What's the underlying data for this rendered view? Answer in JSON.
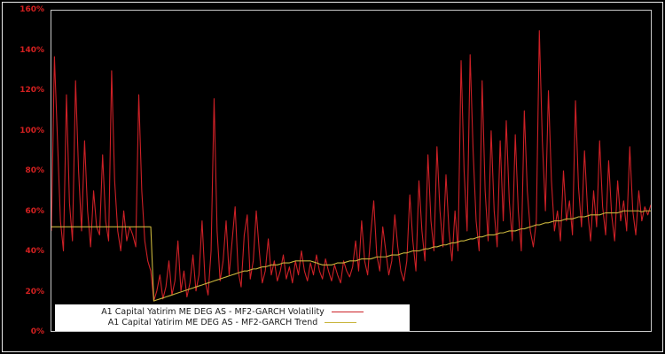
{
  "chart_data": {
    "type": "line",
    "title": "",
    "xlabel": "",
    "ylabel": "",
    "ylim": [
      0,
      160
    ],
    "y_ticks": [
      0,
      20,
      40,
      60,
      80,
      100,
      120,
      140,
      160
    ],
    "y_tick_suffix": "%",
    "grid": false,
    "background_color": "#000000",
    "axis_label_color": "#d42020",
    "frame_color": "#c9c9c9",
    "legend_position": "bottom-left-inside",
    "series": [
      {
        "name": "A1 Capital Yatirim ME DEG AS - MF2-GARCH Volatility",
        "color": "#cd2026",
        "values": [
          50,
          137,
          96,
          55,
          40,
          118,
          64,
          45,
          125,
          80,
          50,
          95,
          60,
          42,
          70,
          52,
          48,
          88,
          55,
          45,
          130,
          75,
          50,
          40,
          60,
          45,
          52,
          48,
          42,
          118,
          70,
          45,
          35,
          30,
          15,
          20,
          28,
          16,
          22,
          35,
          18,
          25,
          45,
          20,
          30,
          17,
          24,
          38,
          20,
          28,
          55,
          25,
          18,
          40,
          116,
          50,
          25,
          35,
          55,
          28,
          45,
          62,
          30,
          22,
          48,
          58,
          26,
          35,
          60,
          40,
          24,
          30,
          46,
          28,
          35,
          25,
          30,
          38,
          26,
          32,
          24,
          35,
          28,
          40,
          30,
          25,
          34,
          28,
          38,
          30,
          26,
          36,
          30,
          25,
          33,
          28,
          24,
          35,
          30,
          27,
          32,
          45,
          30,
          55,
          35,
          28,
          48,
          65,
          38,
          30,
          52,
          40,
          28,
          35,
          58,
          42,
          30,
          25,
          35,
          68,
          45,
          30,
          75,
          50,
          35,
          88,
          55,
          40,
          92,
          60,
          42,
          78,
          50,
          35,
          60,
          40,
          135,
          80,
          50,
          138,
          90,
          55,
          40,
          125,
          70,
          45,
          100,
          60,
          42,
          95,
          55,
          105,
          65,
          45,
          98,
          60,
          40,
          110,
          70,
          50,
          42,
          55,
          150,
          95,
          60,
          120,
          75,
          50,
          60,
          45,
          80,
          55,
          65,
          48,
          115,
          72,
          52,
          90,
          60,
          45,
          70,
          52,
          95,
          62,
          48,
          85,
          58,
          45,
          75,
          55,
          65,
          50,
          92,
          60,
          48,
          70,
          55,
          62,
          58,
          63
        ]
      },
      {
        "name": "A1 Capital Yatirim ME DEG AS - MF2-GARCH Trend",
        "color": "#c8b43c",
        "values": [
          52,
          52,
          52,
          52,
          52,
          52,
          52,
          52,
          52,
          52,
          52,
          52,
          52,
          52,
          52,
          52,
          52,
          52,
          52,
          52,
          52,
          52,
          52,
          52,
          52,
          52,
          52,
          52,
          52,
          52,
          52,
          52,
          52,
          52,
          15,
          15.5,
          16,
          16.5,
          17,
          17.5,
          18,
          18.5,
          19,
          19.5,
          20,
          20.5,
          21,
          21.5,
          22,
          22.5,
          23,
          23.5,
          24,
          24.5,
          25,
          25.5,
          26,
          26.5,
          27,
          27.5,
          28,
          28.5,
          29,
          29.5,
          30,
          30,
          30.5,
          31,
          31,
          31.5,
          32,
          32,
          32.5,
          33,
          33,
          33,
          33.5,
          34,
          34,
          34,
          34.5,
          35,
          35,
          35,
          35,
          35,
          35,
          34.5,
          34,
          33.5,
          33,
          33,
          33,
          33,
          33.5,
          34,
          34,
          34,
          34.5,
          35,
          35,
          35,
          35.5,
          36,
          36,
          36,
          36,
          36.5,
          37,
          37,
          37,
          37,
          37.5,
          38,
          38,
          38,
          38.5,
          39,
          39,
          39.5,
          40,
          40,
          40,
          40.5,
          41,
          41,
          41.5,
          42,
          42,
          42.5,
          43,
          43,
          43.5,
          44,
          44,
          44.5,
          45,
          45,
          45.5,
          46,
          46,
          46.5,
          47,
          47,
          47.5,
          48,
          48,
          48,
          48.5,
          49,
          49,
          49.5,
          50,
          50,
          50,
          50.5,
          51,
          51,
          51.5,
          52,
          52.5,
          53,
          53,
          53.5,
          54,
          54,
          54.5,
          55,
          55,
          55,
          55.5,
          56,
          56,
          56,
          56.5,
          57,
          57,
          57,
          57.5,
          58,
          58,
          58,
          58,
          58.5,
          59,
          59,
          59,
          59,
          59,
          59.5,
          60,
          60,
          60,
          60,
          60,
          60,
          59.5,
          60,
          60,
          60
        ]
      }
    ]
  },
  "legend": {
    "rows": [
      {
        "label": "A1 Capital Yatirim ME DEG AS - MF2-GARCH Volatility"
      },
      {
        "label": "A1 Capital Yatirim ME DEG AS - MF2-GARCH Trend"
      }
    ]
  }
}
